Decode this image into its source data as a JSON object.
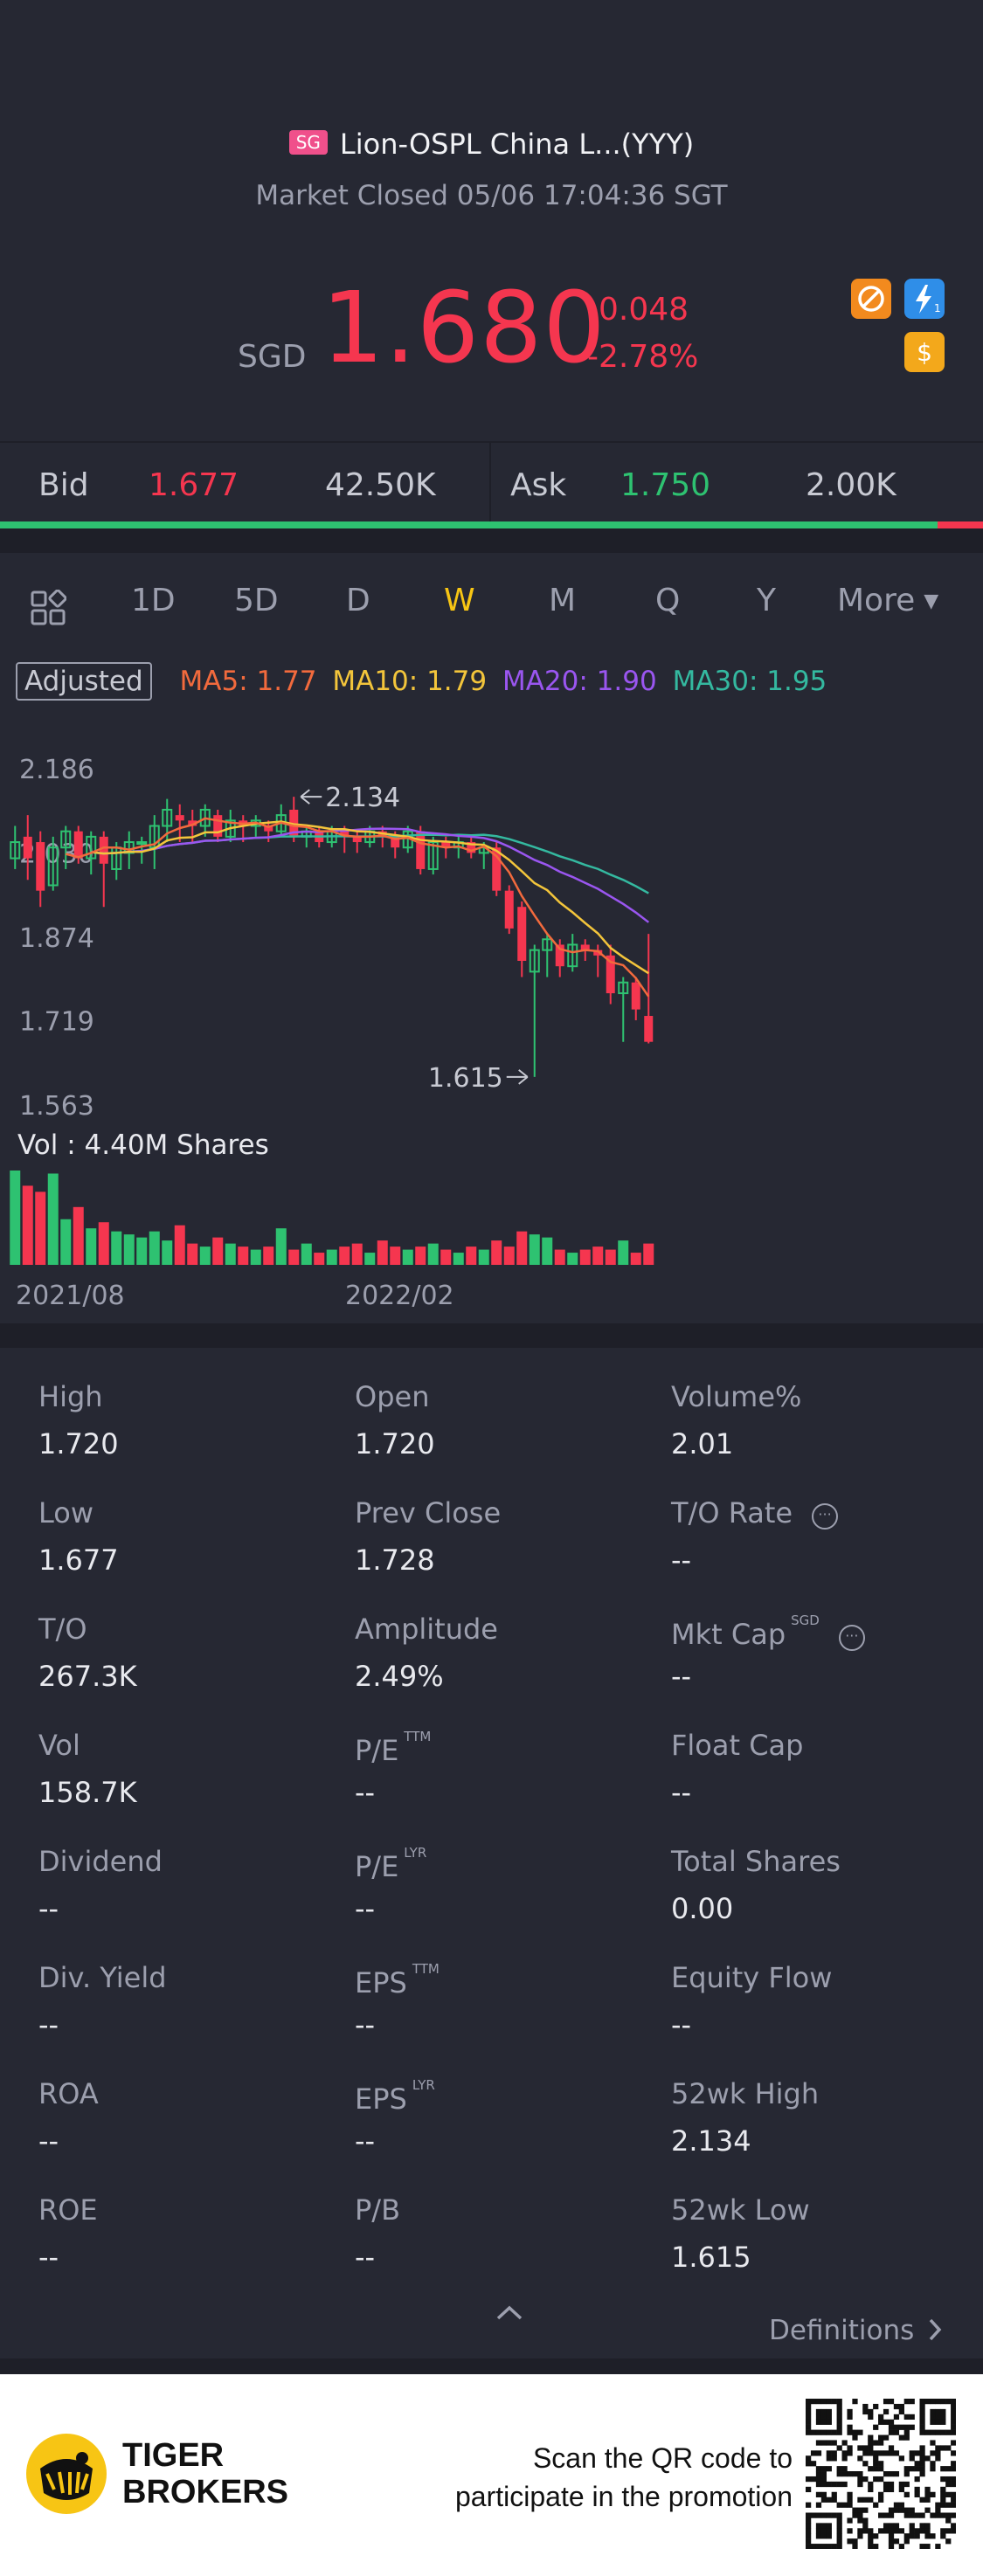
{
  "header": {
    "market_badge": "SG",
    "title": "Lion-OSPL China L...(YYY)",
    "status": "Market Closed 05/06 17:04:36 SGT",
    "currency": "SGD",
    "price": "1.680",
    "change": "-0.048",
    "change_pct": "-2.78%",
    "icons": [
      "no-short-icon",
      "lightning-icon",
      "dollar-icon"
    ],
    "colors": {
      "down": "#f5364f",
      "up": "#2ec271",
      "accent": "#f7c514"
    }
  },
  "bidask": {
    "bid_label": "Bid",
    "bid_price": "1.677",
    "bid_size": "42.50K",
    "ask_label": "Ask",
    "ask_price": "1.750",
    "ask_size": "2.00K"
  },
  "tabs": {
    "items": [
      "1D",
      "5D",
      "D",
      "W",
      "M",
      "Q",
      "Y"
    ],
    "selected": "W",
    "more": "More"
  },
  "indicators": {
    "adjusted": "Adjusted",
    "ma5": "MA5: 1.77",
    "ma10": "MA10: 1.79",
    "ma20": "MA20: 1.90",
    "ma30": "MA30: 1.95",
    "colors": {
      "ma5": "#f26a3d",
      "ma10": "#f3c53b",
      "ma20": "#9a56f0",
      "ma30": "#34b9a0"
    }
  },
  "chart_data": {
    "type": "candlestick",
    "y_ticks": [
      "2.186",
      "2.030",
      "1.874",
      "1.719",
      "1.563"
    ],
    "ylim": [
      1.563,
      2.186
    ],
    "x_ticks": [
      "2021/08",
      "2022/02"
    ],
    "high_annotation": "2.134",
    "low_annotation": "1.615",
    "volume_label": "Vol  : 4.40M Shares",
    "candles": [
      {
        "o": 2.02,
        "c": 2.05,
        "h": 2.08,
        "l": 2.0
      },
      {
        "o": 2.06,
        "c": 2.02,
        "h": 2.1,
        "l": 1.98
      },
      {
        "o": 2.05,
        "c": 1.96,
        "h": 2.07,
        "l": 1.93
      },
      {
        "o": 1.97,
        "c": 2.04,
        "h": 2.06,
        "l": 1.96
      },
      {
        "o": 2.04,
        "c": 2.07,
        "h": 2.08,
        "l": 2.0
      },
      {
        "o": 2.07,
        "c": 2.02,
        "h": 2.08,
        "l": 2.01
      },
      {
        "o": 2.02,
        "c": 2.06,
        "h": 2.07,
        "l": 1.99
      },
      {
        "o": 2.06,
        "c": 2.01,
        "h": 2.07,
        "l": 1.93
      },
      {
        "o": 2.0,
        "c": 2.04,
        "h": 2.05,
        "l": 1.98
      },
      {
        "o": 2.03,
        "c": 2.05,
        "h": 2.07,
        "l": 2.0
      },
      {
        "o": 2.05,
        "c": 2.05,
        "h": 2.06,
        "l": 2.01
      },
      {
        "o": 2.04,
        "c": 2.08,
        "h": 2.1,
        "l": 2.0
      },
      {
        "o": 2.08,
        "c": 2.11,
        "h": 2.13,
        "l": 2.05
      },
      {
        "o": 2.1,
        "c": 2.09,
        "h": 2.12,
        "l": 2.05
      },
      {
        "o": 2.09,
        "c": 2.08,
        "h": 2.11,
        "l": 2.05
      },
      {
        "o": 2.08,
        "c": 2.11,
        "h": 2.12,
        "l": 2.06
      },
      {
        "o": 2.1,
        "c": 2.06,
        "h": 2.11,
        "l": 2.05
      },
      {
        "o": 2.06,
        "c": 2.09,
        "h": 2.11,
        "l": 2.05
      },
      {
        "o": 2.09,
        "c": 2.08,
        "h": 2.1,
        "l": 2.05
      },
      {
        "o": 2.08,
        "c": 2.09,
        "h": 2.1,
        "l": 2.06
      },
      {
        "o": 2.08,
        "c": 2.07,
        "h": 2.09,
        "l": 2.05
      },
      {
        "o": 2.07,
        "c": 2.1,
        "h": 2.12,
        "l": 2.06
      },
      {
        "o": 2.11,
        "c": 2.06,
        "h": 2.134,
        "l": 2.05
      },
      {
        "o": 2.06,
        "c": 2.07,
        "h": 2.08,
        "l": 2.04
      },
      {
        "o": 2.07,
        "c": 2.05,
        "h": 2.08,
        "l": 2.04
      },
      {
        "o": 2.05,
        "c": 2.07,
        "h": 2.08,
        "l": 2.04
      },
      {
        "o": 2.07,
        "c": 2.06,
        "h": 2.08,
        "l": 2.03
      },
      {
        "o": 2.06,
        "c": 2.05,
        "h": 2.07,
        "l": 2.03
      },
      {
        "o": 2.05,
        "c": 2.07,
        "h": 2.08,
        "l": 2.04
      },
      {
        "o": 2.07,
        "c": 2.06,
        "h": 2.08,
        "l": 2.04
      },
      {
        "o": 2.06,
        "c": 2.04,
        "h": 2.07,
        "l": 2.02
      },
      {
        "o": 2.04,
        "c": 2.07,
        "h": 2.08,
        "l": 2.03
      },
      {
        "o": 2.07,
        "c": 2.0,
        "h": 2.08,
        "l": 1.99
      },
      {
        "o": 2.0,
        "c": 2.05,
        "h": 2.06,
        "l": 1.99
      },
      {
        "o": 2.05,
        "c": 2.04,
        "h": 2.06,
        "l": 2.02
      },
      {
        "o": 2.04,
        "c": 2.05,
        "h": 2.06,
        "l": 2.02
      },
      {
        "o": 2.05,
        "c": 2.03,
        "h": 2.06,
        "l": 2.02
      },
      {
        "o": 2.03,
        "c": 2.04,
        "h": 2.05,
        "l": 2.0
      },
      {
        "o": 2.04,
        "c": 1.96,
        "h": 2.05,
        "l": 1.95
      },
      {
        "o": 1.96,
        "c": 1.89,
        "h": 1.97,
        "l": 1.88
      },
      {
        "o": 1.93,
        "c": 1.83,
        "h": 1.94,
        "l": 1.8
      },
      {
        "o": 1.81,
        "c": 1.85,
        "h": 1.86,
        "l": 1.615
      },
      {
        "o": 1.85,
        "c": 1.87,
        "h": 1.88,
        "l": 1.8
      },
      {
        "o": 1.86,
        "c": 1.82,
        "h": 1.87,
        "l": 1.8
      },
      {
        "o": 1.82,
        "c": 1.86,
        "h": 1.88,
        "l": 1.81
      },
      {
        "o": 1.86,
        "c": 1.85,
        "h": 1.87,
        "l": 1.83
      },
      {
        "o": 1.85,
        "c": 1.84,
        "h": 1.86,
        "l": 1.8
      },
      {
        "o": 1.84,
        "c": 1.77,
        "h": 1.86,
        "l": 1.75
      },
      {
        "o": 1.77,
        "c": 1.79,
        "h": 1.8,
        "l": 1.68
      },
      {
        "o": 1.79,
        "c": 1.74,
        "h": 1.8,
        "l": 1.72
      },
      {
        "o": 1.728,
        "c": 1.68,
        "h": 1.88,
        "l": 1.677
      }
    ],
    "volume": [
      62,
      52,
      48,
      60,
      30,
      38,
      24,
      28,
      22,
      20,
      18,
      22,
      16,
      26,
      14,
      12,
      18,
      14,
      12,
      10,
      12,
      24,
      10,
      14,
      8,
      10,
      12,
      14,
      8,
      16,
      12,
      10,
      12,
      14,
      10,
      8,
      12,
      10,
      16,
      12,
      22,
      20,
      18,
      10,
      8,
      10,
      12,
      10,
      16,
      8,
      14
    ]
  },
  "stats": [
    {
      "label": "High",
      "value": "1.720"
    },
    {
      "label": "Open",
      "value": "1.720"
    },
    {
      "label": "Volume%",
      "value": "2.01"
    },
    {
      "label": "Low",
      "value": "1.677"
    },
    {
      "label": "Prev Close",
      "value": "1.728"
    },
    {
      "label": "T/O Rate",
      "value": "--"
    },
    {
      "label": "T/O",
      "value": "267.3K"
    },
    {
      "label": "Amplitude",
      "value": "2.49%"
    },
    {
      "label": "Mkt Cap",
      "value": "--",
      "sup": "SGD"
    },
    {
      "label": "Vol",
      "value": "158.7K"
    },
    {
      "label": "P/E",
      "value": "--",
      "sup": "TTM"
    },
    {
      "label": "Float Cap",
      "value": "--"
    },
    {
      "label": "Dividend",
      "value": "--"
    },
    {
      "label": "P/E",
      "value": "--",
      "sup": "LYR"
    },
    {
      "label": "Total Shares",
      "value": "0.00"
    },
    {
      "label": "Div. Yield",
      "value": "--"
    },
    {
      "label": "EPS",
      "value": "--",
      "sup": "TTM"
    },
    {
      "label": "Equity Flow",
      "value": "--"
    },
    {
      "label": "ROA",
      "value": "--"
    },
    {
      "label": "EPS",
      "value": "--",
      "sup": "LYR"
    },
    {
      "label": "52wk High",
      "value": "2.134"
    },
    {
      "label": "ROE",
      "value": "--"
    },
    {
      "label": "P/B",
      "value": "--"
    },
    {
      "label": "52wk Low",
      "value": "1.615"
    }
  ],
  "definitions_label": "Definitions",
  "footer": {
    "brand_line1": "TIGER",
    "brand_line2": "BROKERS",
    "promo_line1": "Scan the QR code to",
    "promo_line2": "participate in the promotion"
  }
}
